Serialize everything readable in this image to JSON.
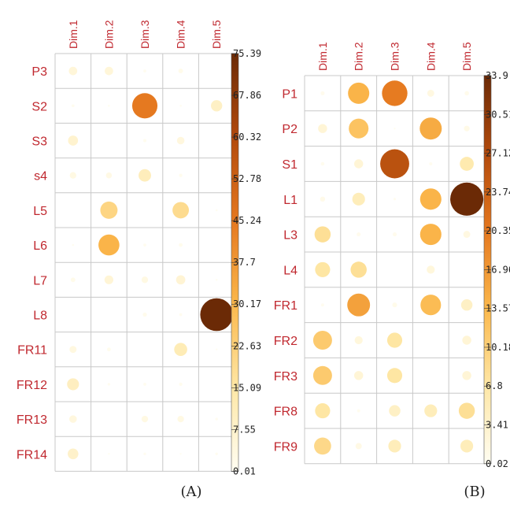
{
  "chart_data": [
    {
      "type": "heatmap",
      "panel_label": "(A)",
      "columns": [
        "Dim.1",
        "Dim.2",
        "Dim.3",
        "Dim.4",
        "Dim.5"
      ],
      "rows": [
        "P3",
        "S2",
        "S3",
        "s4",
        "L5",
        "L6",
        "L7",
        "L8",
        "FR11",
        "FR12",
        "FR13",
        "FR14"
      ],
      "values": [
        [
          5,
          5,
          0.6,
          1.5,
          0
        ],
        [
          0.6,
          0.3,
          45,
          0.3,
          9
        ],
        [
          7,
          0,
          0.8,
          4,
          0
        ],
        [
          3,
          2.5,
          11,
          0.8,
          0
        ],
        [
          0,
          21,
          0,
          19,
          0.3
        ],
        [
          0.3,
          31,
          0.6,
          1,
          0
        ],
        [
          1.5,
          5.5,
          3,
          6,
          0.3
        ],
        [
          0,
          0,
          1.2,
          0.6,
          75.4
        ],
        [
          3.5,
          1,
          0,
          12,
          0.2
        ],
        [
          10,
          0.5,
          0.6,
          0.8,
          0
        ],
        [
          4,
          0,
          3,
          3,
          0.5
        ],
        [
          8,
          0.2,
          0.5,
          0.1,
          0.5
        ]
      ],
      "legend_ticks": [
        "75.39",
        "67.86",
        "60.32",
        "52.78",
        "45.24",
        "37.7",
        "30.17",
        "22.63",
        "15.09",
        "7.55",
        "0.01"
      ],
      "range": [
        0.01,
        75.39
      ],
      "colors": [
        "#fffdf2",
        "#fee7a6",
        "#fbb84c",
        "#e5781f",
        "#b24a0c",
        "#6b2a06"
      ]
    },
    {
      "type": "heatmap",
      "panel_label": "(B)",
      "columns": [
        "Dim.1",
        "Dim.2",
        "Dim.3",
        "Dim.4",
        "Dim.5"
      ],
      "rows": [
        "P1",
        "P2",
        "S1",
        "L1",
        "L3",
        "L4",
        "FR1",
        "FR2",
        "FR3",
        "FR8",
        "FR9"
      ],
      "values": [
        [
          0.5,
          14,
          20,
          1.5,
          0.6
        ],
        [
          2.5,
          12,
          0.1,
          15,
          1
        ],
        [
          0.4,
          2.5,
          26,
          0.3,
          6
        ],
        [
          0.8,
          5,
          0.2,
          14,
          33.9
        ],
        [
          8,
          0.5,
          0.5,
          14,
          1.5
        ],
        [
          7,
          8,
          0,
          2,
          0
        ],
        [
          0.3,
          16,
          0.7,
          13,
          4
        ],
        [
          11,
          2,
          7,
          0,
          2.5
        ],
        [
          11,
          2.5,
          7,
          0,
          2.5
        ],
        [
          7,
          0.3,
          4,
          5,
          8
        ],
        [
          9,
          1.2,
          5,
          0,
          5
        ]
      ],
      "legend_ticks": [
        "33.9",
        "30.51",
        "27.12",
        "23.74",
        "20.35",
        "16.96",
        "13.57",
        "10.18",
        "6.8",
        "3.41",
        "0.02"
      ],
      "range": [
        0.02,
        33.9
      ],
      "colors": [
        "#fffdf2",
        "#fee7a6",
        "#fbb84c",
        "#e5781f",
        "#b24a0c",
        "#6b2a06"
      ]
    }
  ]
}
